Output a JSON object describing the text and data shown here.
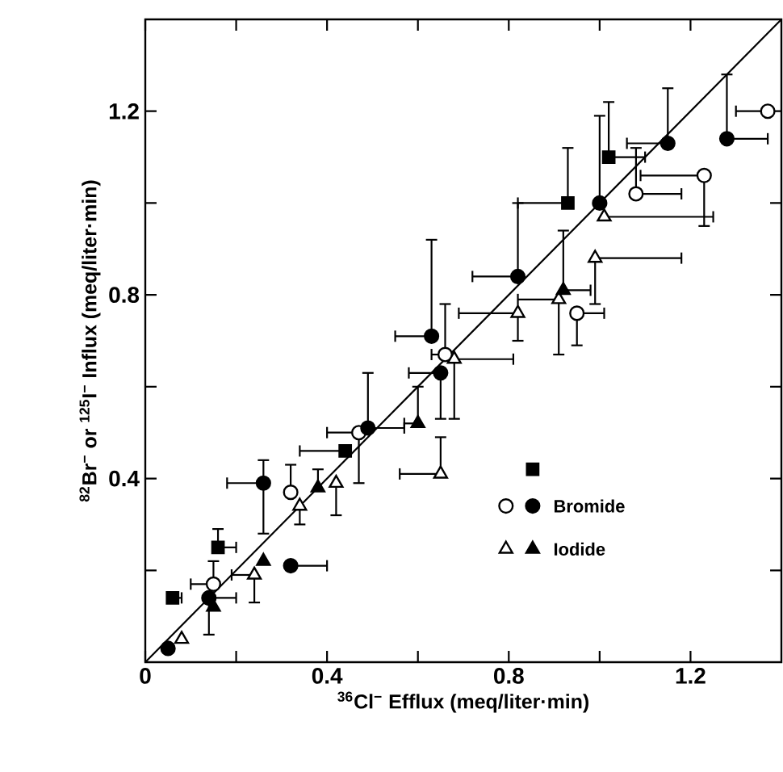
{
  "chart_data": {
    "type": "scatter",
    "xlabel": "$^{36}$Cl$^{−}$ Efflux (meq/liter·min)",
    "ylabel": "$^{82}$Br$^{−}$ or $^{125}$I$^{−}$ Influx (meq/liter·min)",
    "xlim": [
      0,
      1.4
    ],
    "ylim": [
      0,
      1.4
    ],
    "xticks": [
      0,
      {
        "value": 0.2,
        "label": null
      },
      0.4,
      {
        "value": 0.6,
        "label": null
      },
      0.8,
      {
        "value": 1.0,
        "label": null
      },
      1.2
    ],
    "yticks": [
      {
        "value": 0,
        "label": null
      },
      {
        "value": 0.2,
        "label": null
      },
      0.4,
      {
        "value": 0.6,
        "label": null
      },
      0.8,
      {
        "value": 1.0,
        "label": null
      },
      1.2
    ],
    "legend": "bottom right",
    "series": [
      {
        "color": "#000000",
        "marker": "square",
        "x": [
          0.16,
          0.06,
          0.44,
          0.93,
          1.02
        ],
        "values": [
          0.25,
          0.14,
          0.46,
          1.0,
          1.1
        ],
        "xerrors": [
          [
            0.16,
            0.2
          ],
          [
            0.06,
            0.08
          ],
          [
            0.34,
            0.44
          ],
          [
            0.82,
            0.93
          ],
          [
            1.02,
            1.1
          ]
        ],
        "errors": [
          [
            0.25,
            0.29
          ],
          null,
          null,
          [
            1.0,
            1.12
          ],
          [
            1.1,
            1.22
          ]
        ]
      },
      {
        "color": "#ffffff",
        "marker": "circle",
        "x": [
          0.15,
          0.32,
          0.47,
          0.66,
          0.95,
          1.08,
          1.23,
          1.37
        ],
        "values": [
          0.17,
          0.37,
          0.5,
          0.67,
          0.76,
          1.02,
          1.06,
          1.2
        ],
        "xerrors": [
          [
            0.1,
            0.15
          ],
          null,
          [
            0.4,
            0.47
          ],
          [
            0.63,
            0.66
          ],
          [
            0.95,
            1.01
          ],
          [
            1.08,
            1.18
          ],
          [
            1.09,
            1.23
          ],
          [
            1.3,
            1.37
          ]
        ],
        "errors": [
          [
            0.17,
            0.22
          ],
          [
            0.37,
            0.43
          ],
          [
            0.39,
            0.5
          ],
          [
            0.67,
            0.78
          ],
          [
            0.69,
            0.76
          ],
          [
            1.02,
            1.12
          ],
          [
            0.95,
            1.06
          ],
          null
        ]
      },
      {
        "name": "Bromide",
        "color": "#000000",
        "marker": "circle",
        "x": [
          0.05,
          0.14,
          0.32,
          0.26,
          0.49,
          0.65,
          0.63,
          0.82,
          1.0,
          1.15,
          1.28
        ],
        "values": [
          0.03,
          0.14,
          0.21,
          0.39,
          0.51,
          0.63,
          0.71,
          0.84,
          1.0,
          1.13,
          1.14
        ],
        "xerrors": [
          null,
          [
            0.14,
            0.2
          ],
          [
            0.32,
            0.4
          ],
          [
            0.18,
            0.26
          ],
          [
            0.49,
            0.57
          ],
          [
            0.58,
            0.65
          ],
          [
            0.55,
            0.63
          ],
          [
            0.72,
            0.82
          ],
          null,
          [
            1.06,
            1.15
          ],
          [
            1.28,
            1.37
          ]
        ],
        "errors": [
          null,
          [
            0.06,
            0.14
          ],
          null,
          [
            0.28,
            0.44
          ],
          [
            0.51,
            0.63
          ],
          [
            0.53,
            0.63
          ],
          [
            0.71,
            0.92
          ],
          [
            0.84,
            1.0
          ],
          [
            1.0,
            1.19
          ],
          [
            1.13,
            1.25
          ],
          [
            1.14,
            1.28
          ]
        ]
      },
      {
        "color": "#ffffff",
        "marker": "triangle",
        "x": [
          0.08,
          0.24,
          0.34,
          0.42,
          0.65,
          0.68,
          0.82,
          0.91,
          0.99,
          1.01
        ],
        "values": [
          0.05,
          0.19,
          0.34,
          0.39,
          0.41,
          0.66,
          0.76,
          0.79,
          0.88,
          0.97
        ],
        "xerrors": [
          null,
          [
            0.19,
            0.24
          ],
          null,
          null,
          [
            0.56,
            0.65
          ],
          [
            0.68,
            0.81
          ],
          [
            0.69,
            0.82
          ],
          [
            0.82,
            0.91
          ],
          [
            0.99,
            1.18
          ],
          [
            1.01,
            1.25
          ]
        ],
        "errors": [
          null,
          [
            0.13,
            0.19
          ],
          [
            0.3,
            0.34
          ],
          [
            0.32,
            0.39
          ],
          [
            0.41,
            0.49
          ],
          [
            0.53,
            0.66
          ],
          [
            0.7,
            0.76
          ],
          [
            0.67,
            0.79
          ],
          [
            0.78,
            0.88
          ],
          null
        ]
      },
      {
        "name": "Iodide",
        "color": "#000000",
        "marker": "triangle",
        "x": [
          0.15,
          0.26,
          0.38,
          0.6,
          0.92
        ],
        "values": [
          0.12,
          0.22,
          0.38,
          0.52,
          0.81
        ],
        "xerrors": [
          null,
          null,
          null,
          [
            0.57,
            0.6
          ],
          [
            0.92,
            0.98
          ]
        ],
        "errors": [
          null,
          null,
          [
            0.38,
            0.42
          ],
          [
            0.52,
            0.6
          ],
          [
            0.81,
            0.94
          ]
        ]
      },
      {
        "type": "line",
        "color": "#000000",
        "x": [
          0,
          1.4
        ],
        "values": [
          0,
          1.4
        ]
      }
    ]
  }
}
